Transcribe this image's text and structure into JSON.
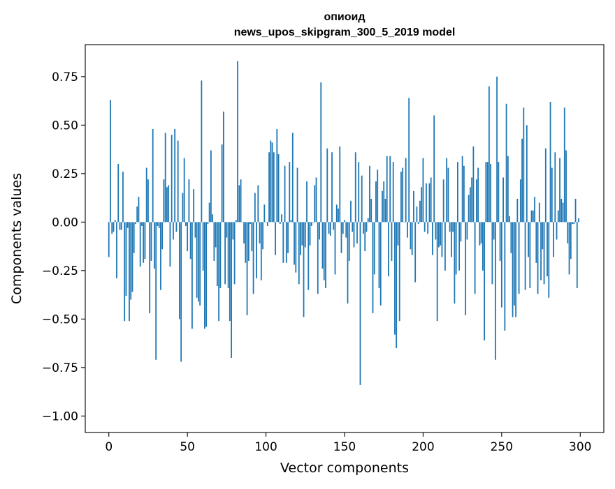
{
  "chart_data": {
    "type": "bar",
    "title_lines": [
      "опиоид",
      "news_upos_skipgram_300_5_2019 model"
    ],
    "xlabel": "Vector components",
    "ylabel": "Components values",
    "xlim": [
      -15,
      315
    ],
    "ylim": [
      -1.085,
      0.915
    ],
    "xticks": [
      0,
      50,
      100,
      150,
      200,
      250,
      300
    ],
    "xtick_labels": [
      "0",
      "50",
      "100",
      "150",
      "200",
      "250",
      "300"
    ],
    "yticks": [
      -1.0,
      -0.75,
      -0.5,
      -0.25,
      0.0,
      0.25,
      0.5,
      0.75
    ],
    "ytick_labels": [
      "−1.00",
      "−0.75",
      "−0.50",
      "−0.25",
      "0.00",
      "0.25",
      "0.50",
      "0.75"
    ],
    "bar_color": "#1f77b4",
    "grid": false,
    "values": [
      -0.18,
      0.63,
      -0.06,
      -0.05,
      0.01,
      -0.29,
      0.3,
      -0.04,
      -0.04,
      0.26,
      -0.51,
      -0.38,
      -0.03,
      -0.51,
      -0.4,
      -0.36,
      -0.16,
      -0.01,
      0.08,
      0.13,
      -0.23,
      -0.02,
      -0.21,
      -0.19,
      0.28,
      0.22,
      -0.47,
      -0.2,
      0.48,
      -0.24,
      -0.71,
      -0.02,
      -0.03,
      -0.35,
      -0.14,
      0.22,
      0.46,
      0.18,
      0.19,
      -0.23,
      0.45,
      -0.09,
      0.48,
      -0.05,
      0.42,
      -0.5,
      -0.72,
      0.15,
      0.33,
      -0.02,
      -0.15,
      0.22,
      -0.19,
      -0.55,
      0.17,
      -0.08,
      -0.39,
      -0.41,
      -0.43,
      0.73,
      -0.25,
      -0.55,
      -0.54,
      -0.01,
      0.1,
      0.37,
      0.04,
      -0.2,
      -0.13,
      -0.33,
      -0.51,
      -0.34,
      0.4,
      0.57,
      -0.32,
      -0.08,
      -0.34,
      -0.51,
      -0.7,
      -0.09,
      -0.32,
      0.01,
      0.83,
      0.19,
      0.22,
      0.0,
      -0.11,
      -0.21,
      -0.48,
      -0.2,
      -0.01,
      -0.15,
      -0.37,
      0.15,
      -0.29,
      0.19,
      -0.11,
      -0.3,
      -0.14,
      0.09,
      0.0,
      -0.02,
      0.36,
      0.42,
      0.41,
      0.36,
      -0.17,
      0.48,
      0.35,
      -0.01,
      0.04,
      -0.21,
      0.29,
      -0.21,
      -0.16,
      0.31,
      0.01,
      0.46,
      -0.22,
      -0.26,
      0.28,
      -0.32,
      -0.17,
      -0.12,
      -0.49,
      -0.13,
      0.21,
      -0.35,
      -0.12,
      -0.02,
      0.0,
      0.19,
      0.23,
      -0.37,
      -0.09,
      0.72,
      -0.24,
      -0.3,
      -0.34,
      0.38,
      -0.06,
      -0.07,
      0.36,
      -0.04,
      -0.27,
      0.09,
      0.07,
      0.39,
      -0.16,
      -0.06,
      0.01,
      -0.08,
      -0.42,
      -0.2,
      0.11,
      -0.05,
      -0.13,
      0.36,
      -0.11,
      0.31,
      -0.84,
      0.24,
      -0.06,
      -0.15,
      -0.05,
      0.02,
      0.29,
      0.12,
      -0.47,
      -0.27,
      0.21,
      0.27,
      -0.34,
      -0.43,
      0.16,
      0.21,
      0.12,
      0.34,
      -0.28,
      0.34,
      -0.2,
      0.31,
      -0.58,
      -0.65,
      -0.12,
      -0.51,
      0.26,
      0.28,
      0.0,
      0.33,
      -0.08,
      0.64,
      -0.14,
      -0.17,
      0.16,
      -0.31,
      0.08,
      -0.01,
      0.11,
      0.18,
      0.33,
      -0.05,
      0.2,
      -0.06,
      0.2,
      0.23,
      -0.17,
      0.55,
      -0.09,
      -0.51,
      -0.13,
      -0.12,
      -0.18,
      0.22,
      -0.25,
      0.33,
      0.28,
      -0.05,
      -0.18,
      -0.05,
      -0.42,
      -0.27,
      0.31,
      -0.25,
      -0.1,
      0.34,
      0.29,
      -0.48,
      -0.09,
      0.14,
      0.18,
      0.23,
      0.39,
      -0.37,
      0.22,
      0.28,
      -0.12,
      -0.11,
      -0.25,
      -0.61,
      0.31,
      0.31,
      0.7,
      0.3,
      -0.32,
      -0.09,
      -0.71,
      0.75,
      0.31,
      -0.2,
      -0.44,
      0.23,
      -0.56,
      0.61,
      0.34,
      0.03,
      -0.16,
      -0.49,
      -0.43,
      -0.49,
      0.12,
      -0.37,
      0.22,
      0.43,
      0.59,
      -0.35,
      0.5,
      -0.18,
      -0.34,
      0.06,
      0.06,
      0.13,
      -0.21,
      -0.37,
      0.1,
      -0.3,
      -0.14,
      -0.32,
      0.38,
      -0.28,
      -0.39,
      0.62,
      0.28,
      -0.18,
      0.36,
      -0.09,
      0.06,
      0.33,
      0.12,
      0.1,
      0.59,
      0.37,
      -0.11,
      -0.27,
      -0.19,
      -0.01,
      -0.01,
      0.12,
      -0.34,
      0.02
    ]
  }
}
